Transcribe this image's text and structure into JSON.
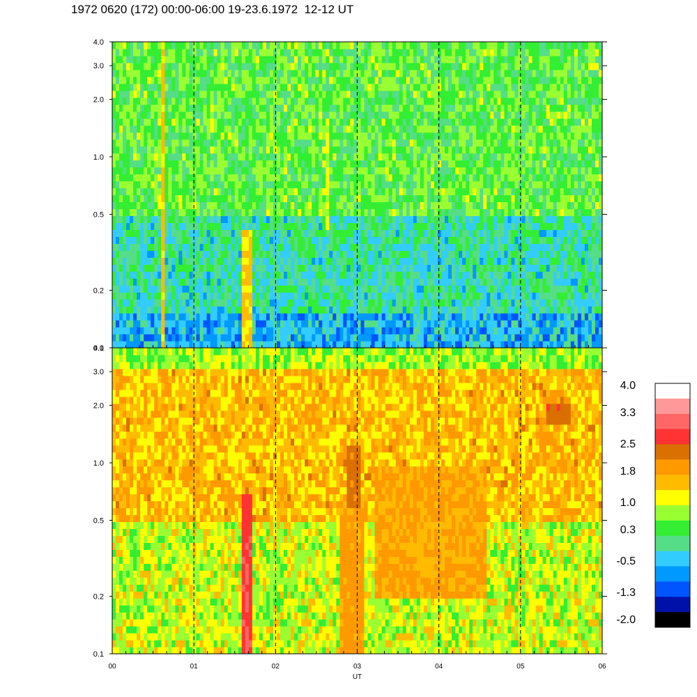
{
  "chart_data": [
    {
      "type": "heatmap",
      "title": "1972 0620 (172) 00:00-06:00 19-23.6.1972  12-12 UT",
      "panel": "upper",
      "xlabel": "",
      "ylabel": "",
      "y_scale": "log",
      "ylim": [
        0.1,
        4.0
      ],
      "xlim": [
        0,
        6
      ],
      "y_ticks": [
        "0.1",
        "0.2",
        "0.5",
        "1.0",
        "2.0",
        "3.0",
        "4.0"
      ],
      "y_tick_values": [
        0.1,
        0.2,
        0.5,
        1.0,
        2.0,
        3.0,
        4.0
      ],
      "hour_dashed_lines": [
        1,
        2,
        3,
        4,
        5
      ],
      "background_level": [
        {
          "y": [
            0.1,
            0.15
          ],
          "value": -0.5
        },
        {
          "y": [
            0.15,
            0.5
          ],
          "value": 0.0
        },
        {
          "y": [
            0.5,
            4.0
          ],
          "value": 0.5
        }
      ],
      "features": [
        {
          "x": [
            0.6,
            0.63
          ],
          "y": [
            0.1,
            4.0
          ],
          "value": 1.5
        },
        {
          "x": [
            1.6,
            1.7
          ],
          "y": [
            0.1,
            0.4
          ],
          "value": 1.4
        },
        {
          "x": [
            2.6,
            2.65
          ],
          "y": [
            0.4,
            1.5
          ],
          "value": 1.0
        },
        {
          "x": [
            5.3,
            5.6
          ],
          "y": [
            1.6,
            1.8
          ],
          "value": 1.0
        }
      ]
    },
    {
      "type": "heatmap",
      "panel": "lower",
      "xlabel": "UT",
      "ylabel": "",
      "y_scale": "log",
      "ylim": [
        0.1,
        4.0
      ],
      "xlim": [
        0,
        6
      ],
      "x_ticks": [
        "00",
        "01",
        "02",
        "03",
        "04",
        "05",
        "06"
      ],
      "x_tick_values": [
        0,
        1,
        2,
        3,
        4,
        5,
        6
      ],
      "y_ticks": [
        "0.1",
        "0.2",
        "0.5",
        "1.0",
        "2.0",
        "3.0",
        "4.0"
      ],
      "y_tick_values": [
        0.1,
        0.2,
        0.5,
        1.0,
        2.0,
        3.0,
        4.0
      ],
      "hour_dashed_lines": [
        1,
        2,
        3,
        4,
        5
      ],
      "background_level": [
        {
          "y": [
            0.1,
            0.5
          ],
          "value": 1.0
        },
        {
          "y": [
            0.5,
            3.0
          ],
          "value": 1.6
        },
        {
          "y": [
            3.0,
            4.0
          ],
          "value": 0.8
        }
      ],
      "features": [
        {
          "x": [
            1.58,
            1.7
          ],
          "y": [
            0.1,
            0.7
          ],
          "value": 2.8
        },
        {
          "x": [
            2.85,
            3.05
          ],
          "y": [
            0.6,
            1.2
          ],
          "value": 2.3
        },
        {
          "x": [
            2.8,
            3.1
          ],
          "y": [
            0.1,
            0.6
          ],
          "value": 1.9
        },
        {
          "x": [
            3.2,
            4.6
          ],
          "y": [
            0.2,
            1.0
          ],
          "value": 1.8
        },
        {
          "x": [
            5.3,
            5.6
          ],
          "y": [
            1.6,
            2.0
          ],
          "value": 2.4
        }
      ]
    }
  ],
  "colorbar": {
    "labels": [
      "4.0",
      "3.3",
      "2.5",
      "1.8",
      "1.0",
      "0.3",
      "-0.5",
      "-1.3",
      "-2.0"
    ],
    "min": -2.0,
    "max": 4.0,
    "colors": [
      "#ffffff",
      "#ff9999",
      "#ff6666",
      "#ff3333",
      "#d97000",
      "#ff9900",
      "#ffbb00",
      "#ffff00",
      "#99ff33",
      "#33ee33",
      "#55dd88",
      "#33ccff",
      "#0099ff",
      "#0055ff",
      "#0011aa",
      "#000000"
    ]
  }
}
